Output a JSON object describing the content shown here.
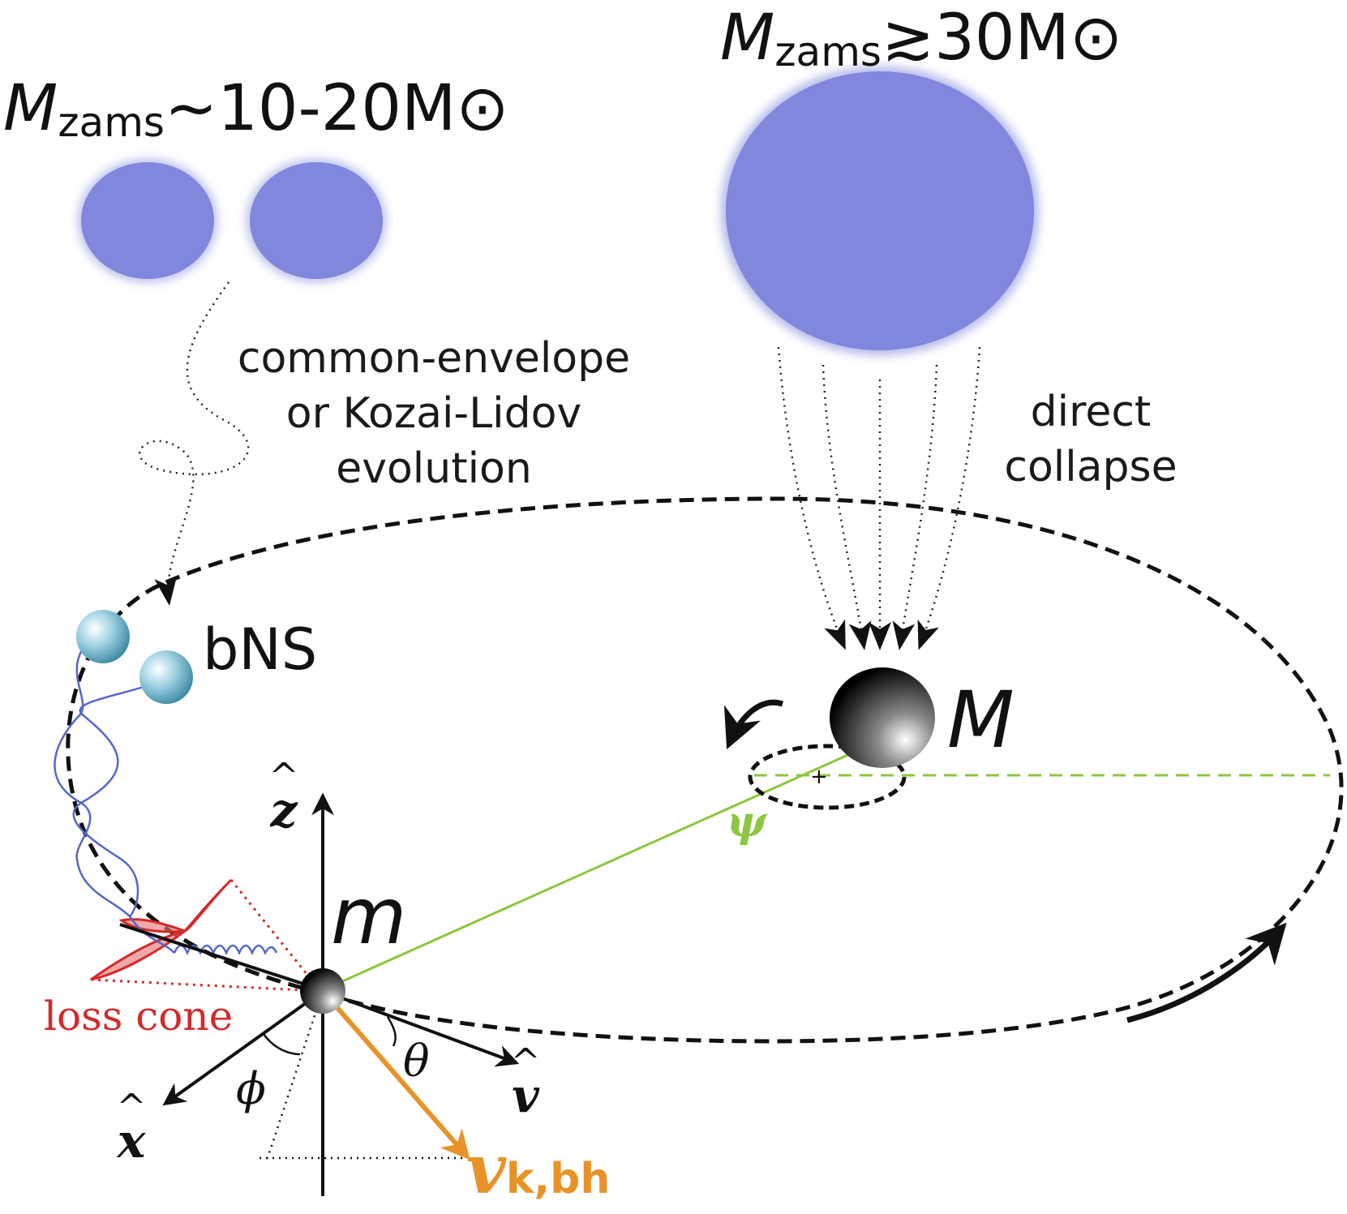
{
  "top_left_label": {
    "symbol": "M",
    "subscript": "zams",
    "relation": "~10-20M",
    "sun_symbol": "⊙"
  },
  "top_right_label": {
    "symbol": "M",
    "subscript": "zams",
    "relation": "≳30M",
    "sun_symbol": "⊙"
  },
  "channel_left": {
    "lines": [
      "common-envelope",
      "or Kozai-Lidov",
      "evolution"
    ]
  },
  "channel_right": {
    "lines": [
      "direct",
      "collapse"
    ]
  },
  "binary_label": "bNS",
  "big_mass_label": "M",
  "small_mass_label": "m",
  "loss_cone_label": "loss cone",
  "angle_psi": "ψ",
  "angle_theta": "θ",
  "angle_phi": "ϕ",
  "axis_z": "z",
  "axis_x": "x",
  "axis_v": "v",
  "hat_symbol": "^",
  "kick_velocity": {
    "symbol": "v",
    "subscript": "k,bh"
  },
  "colors": {
    "star": "#8087dc",
    "green": "#8cc63f",
    "orange": "#e8932a",
    "red": "#d42a2a",
    "wave": "#5566cc",
    "ns": "#8ec8dc"
  }
}
